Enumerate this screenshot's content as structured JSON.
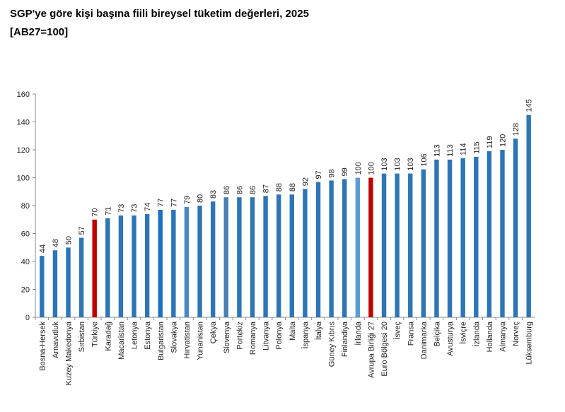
{
  "chart_data": {
    "type": "bar",
    "title": "SGP'ye göre kişi başına fiili bireysel tüketim değerleri, 2025",
    "subtitle": "[AB27=100]",
    "categories": [
      "Bosna-Hersek",
      "Arnavutluk",
      "Kuzey Makedonya",
      "Sırbistan",
      "Türkiye",
      "Karadağ",
      "Macaristan",
      "Letonya",
      "Estonya",
      "Bulgaristan",
      "Slovakya",
      "Hırvatistan",
      "Yunanistan",
      "Çekya",
      "Slovenya",
      "Portekiz",
      "Romanya",
      "Litvanya",
      "Polonya",
      "Malta",
      "İspanya",
      "İtalya",
      "Güney Kıbrıs",
      "Finlandiya",
      "İrlanda",
      "Avrupa Birliği 27",
      "Euro Bölgesi 20",
      "İsveç",
      "Fransa",
      "Danimarka",
      "Belçika",
      "Avusturya",
      "İsviçre",
      "İzlanda",
      "Hollanda",
      "Almanya",
      "Norveç",
      "Lüksemburg"
    ],
    "values": [
      44,
      48,
      50,
      57,
      70,
      71,
      73,
      73,
      74,
      77,
      77,
      79,
      80,
      83,
      86,
      86,
      86,
      87,
      88,
      88,
      92,
      97,
      98,
      99,
      100,
      100,
      103,
      103,
      103,
      106,
      113,
      113,
      114,
      115,
      119,
      120,
      128,
      145
    ],
    "colors": [
      "#2e75b6",
      "#2e75b6",
      "#2e75b6",
      "#2e75b6",
      "#c00000",
      "#2e75b6",
      "#2e75b6",
      "#2e75b6",
      "#2e75b6",
      "#1f6fc0",
      "#2e75b6",
      "#4a86c5",
      "#2e75b6",
      "#2e75b6",
      "#4a7fb8",
      "#2e75b6",
      "#2e75b6",
      "#2e75b6",
      "#2e75b6",
      "#2e75b6",
      "#2e75b6",
      "#2e75b6",
      "#2e75b6",
      "#2e75b6",
      "#5b9bd5",
      "#c00000",
      "#2e75b6",
      "#2e75b6",
      "#2e75b6",
      "#2e75b6",
      "#2e75b6",
      "#2e75b6",
      "#2e75b6",
      "#2e75b6",
      "#2e75b6",
      "#2e75b6",
      "#2e75b6",
      "#2e75b6"
    ],
    "ylim": [
      0,
      160
    ],
    "yticks": [
      0,
      20,
      40,
      60,
      80,
      100,
      120,
      140,
      160
    ]
  }
}
